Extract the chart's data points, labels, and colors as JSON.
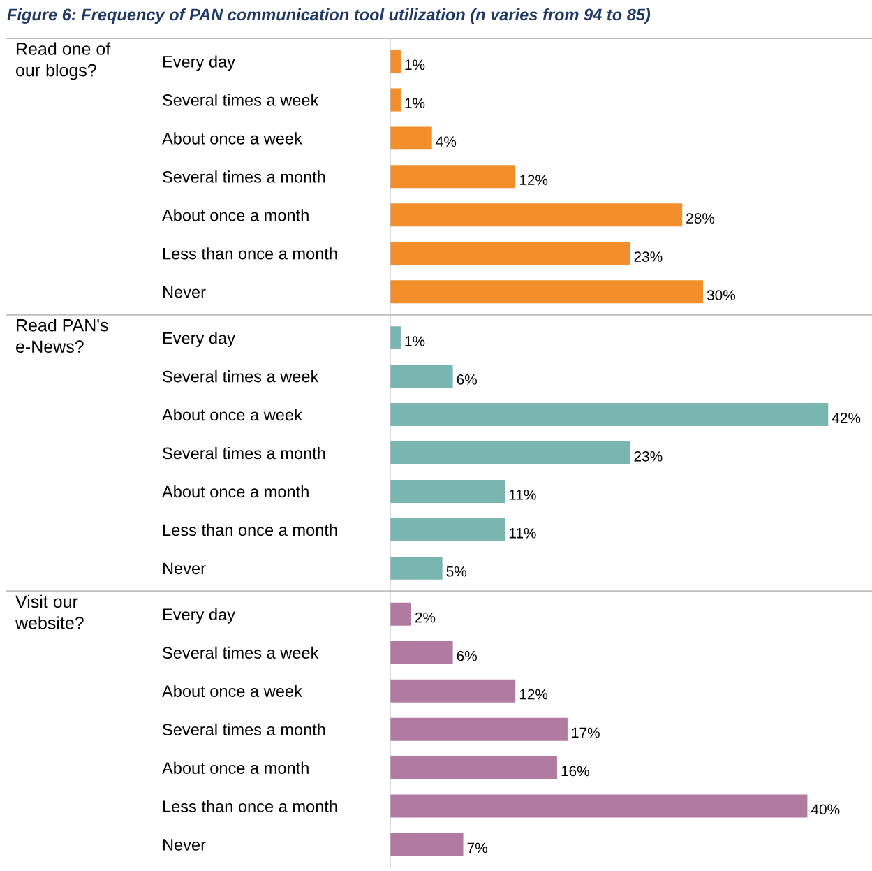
{
  "chart_data": [
    {
      "type": "bar",
      "orientation": "horizontal",
      "title": "Figure 6: Frequency of PAN communication tool utilization (n varies from 94 to 85)",
      "ylabel": "Read one of\nour blogs?",
      "categories": [
        "Every day",
        "Several times a week",
        "About once a week",
        "Several times a month",
        "About once a month",
        "Less than once a month",
        "Never"
      ],
      "color": "#f28e2b",
      "values": [
        1,
        1,
        4,
        12,
        28,
        23,
        30
      ],
      "value_labels": [
        "1%",
        "1%",
        "4%",
        "12%",
        "28%",
        "23%",
        "30%"
      ]
    },
    {
      "type": "bar",
      "orientation": "horizontal",
      "ylabel": "Read PAN's\ne-News?",
      "categories": [
        "Every day",
        "Several times a week",
        "About once a week",
        "Several times a month",
        "About once a month",
        "Less than once a month",
        "Never"
      ],
      "color": "#79b6b0",
      "values": [
        1,
        6,
        42,
        23,
        11,
        11,
        5
      ],
      "value_labels": [
        "1%",
        "6%",
        "42%",
        "23%",
        "11%",
        "11%",
        "5%"
      ]
    },
    {
      "type": "bar",
      "orientation": "horizontal",
      "ylabel": "Visit our\nwebsite?",
      "categories": [
        "Every day",
        "Several times a week",
        "About once a week",
        "Several times a month",
        "About once a month",
        "Less than once a month",
        "Never"
      ],
      "color": "#b07aa1",
      "values": [
        2,
        6,
        12,
        17,
        16,
        40,
        7
      ],
      "value_labels": [
        "2%",
        "6%",
        "12%",
        "17%",
        "16%",
        "40%",
        "7%"
      ]
    }
  ]
}
